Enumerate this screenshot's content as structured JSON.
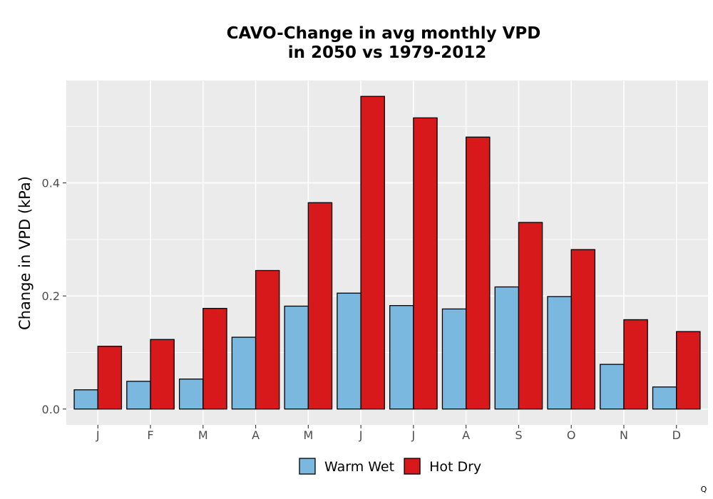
{
  "chart_data": {
    "type": "bar",
    "title_lines": [
      "CAVO-Change in avg monthly VPD",
      "in 2050 vs 1979-2012"
    ],
    "xlabel": "",
    "ylabel": "Change in VPD (kPa)",
    "categories": [
      "J",
      "F",
      "M",
      "A",
      "M",
      "J",
      "J",
      "A",
      "S",
      "O",
      "N",
      "D"
    ],
    "series": [
      {
        "name": "Warm Wet",
        "color": "#7ab8e0",
        "values": [
          0.034,
          0.049,
          0.053,
          0.127,
          0.182,
          0.205,
          0.183,
          0.177,
          0.216,
          0.199,
          0.079,
          0.039
        ]
      },
      {
        "name": "Hot Dry",
        "color": "#d7191c",
        "values": [
          0.111,
          0.123,
          0.178,
          0.245,
          0.365,
          0.553,
          0.515,
          0.481,
          0.33,
          0.282,
          0.158,
          0.137
        ]
      }
    ],
    "yticks": [
      0.0,
      0.2,
      0.4
    ],
    "ytick_labels": [
      "0.0",
      "0.2",
      "0.4"
    ],
    "ylim": [
      -0.028,
      0.581
    ],
    "grid": true,
    "panel_background": "#ebebeb",
    "legend_position": "bottom"
  },
  "corner_mark": "Q"
}
